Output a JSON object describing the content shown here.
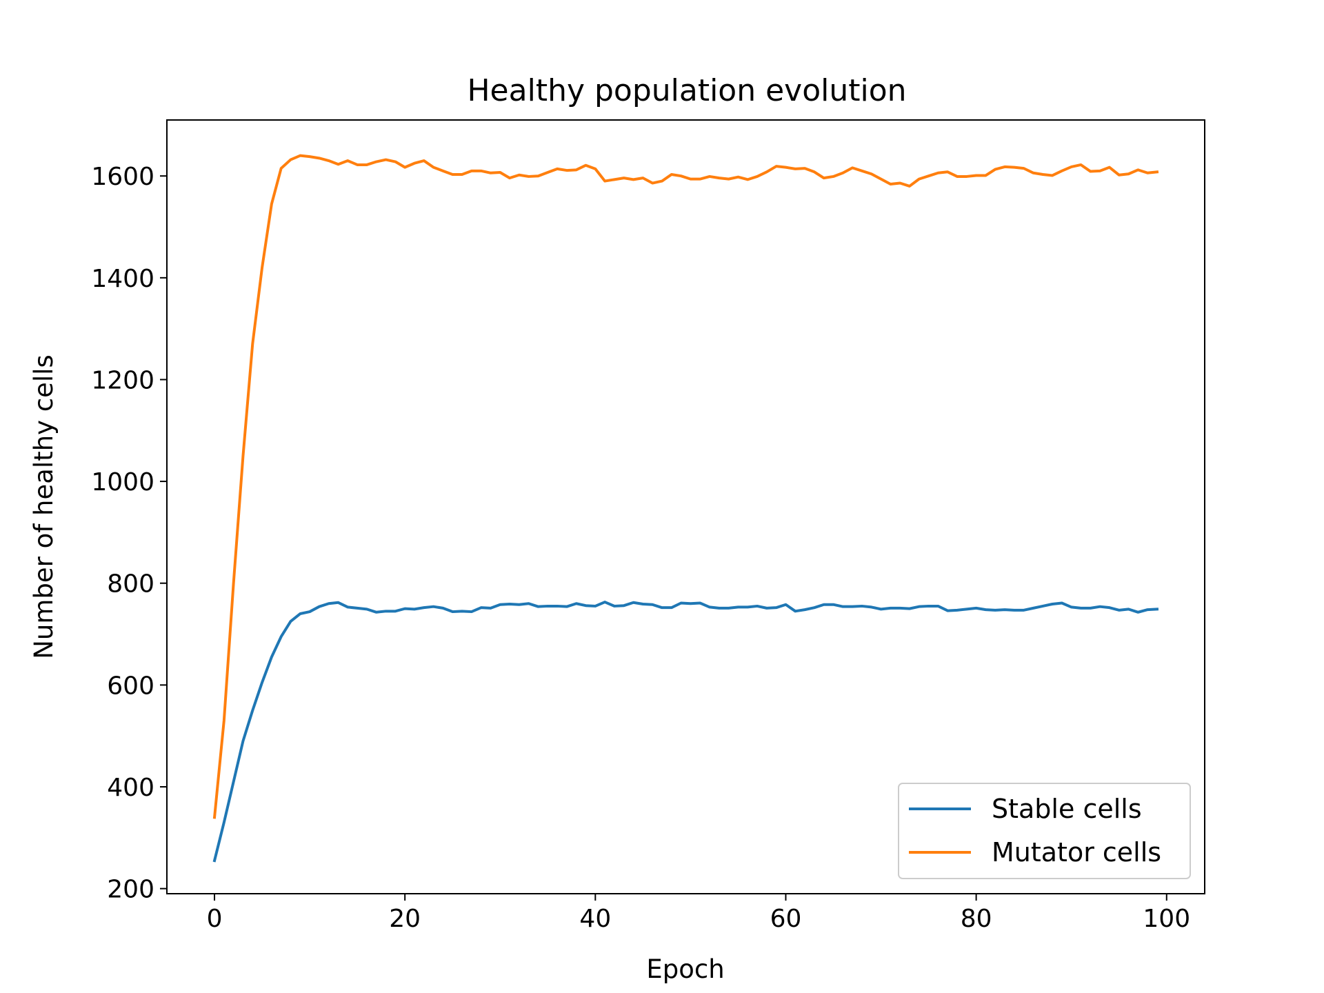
{
  "chart_data": {
    "type": "line",
    "title": "Healthy population evolution",
    "xlabel": "Epoch",
    "ylabel": "Number of healthy cells",
    "xlim": [
      -5,
      104
    ],
    "ylim": [
      190,
      1710
    ],
    "xticks": [
      0,
      20,
      40,
      60,
      80,
      100
    ],
    "yticks": [
      200,
      400,
      600,
      800,
      1000,
      1200,
      1400,
      1600
    ],
    "grid": false,
    "legend_position": "lower-right",
    "series": [
      {
        "name": "Stable cells",
        "color": "#1f77b4",
        "values": [
          255,
          330,
          410,
          490,
          550,
          605,
          655,
          695,
          725,
          740,
          744,
          754,
          760,
          762,
          753,
          751,
          749,
          743,
          745,
          745,
          750,
          749,
          752,
          754,
          751,
          744,
          745,
          744,
          752,
          751,
          758,
          759,
          758,
          760,
          754,
          755,
          755,
          754,
          760,
          756,
          755,
          763,
          755,
          756,
          762,
          759,
          758,
          752,
          752,
          761,
          760,
          761,
          753,
          751,
          751,
          753,
          753,
          755,
          751,
          752,
          758,
          745,
          748,
          752,
          758,
          758,
          754,
          754,
          755,
          753,
          749,
          751,
          751,
          750,
          754,
          755,
          755,
          746,
          747,
          749,
          751,
          748,
          747,
          748,
          747,
          747,
          751,
          755,
          759,
          761,
          753,
          751,
          751,
          754,
          752,
          747,
          749,
          743,
          748,
          749
        ]
      },
      {
        "name": "Mutator cells",
        "color": "#ff7f0e",
        "values": [
          340,
          530,
          800,
          1050,
          1270,
          1420,
          1545,
          1615,
          1632,
          1640,
          1638,
          1635,
          1630,
          1623,
          1630,
          1622,
          1622,
          1628,
          1632,
          1628,
          1617,
          1625,
          1630,
          1617,
          1610,
          1603,
          1603,
          1610,
          1610,
          1606,
          1607,
          1596,
          1602,
          1599,
          1600,
          1607,
          1614,
          1611,
          1612,
          1621,
          1614,
          1590,
          1593,
          1596,
          1593,
          1596,
          1586,
          1590,
          1603,
          1600,
          1594,
          1594,
          1599,
          1596,
          1594,
          1598,
          1593,
          1599,
          1608,
          1619,
          1617,
          1614,
          1615,
          1608,
          1596,
          1599,
          1606,
          1616,
          1610,
          1604,
          1594,
          1584,
          1586,
          1580,
          1594,
          1600,
          1606,
          1608,
          1599,
          1599,
          1601,
          1601,
          1613,
          1618,
          1617,
          1615,
          1606,
          1603,
          1601,
          1610,
          1618,
          1622,
          1609,
          1610,
          1617,
          1602,
          1604,
          1612,
          1606,
          1608
        ]
      }
    ]
  }
}
